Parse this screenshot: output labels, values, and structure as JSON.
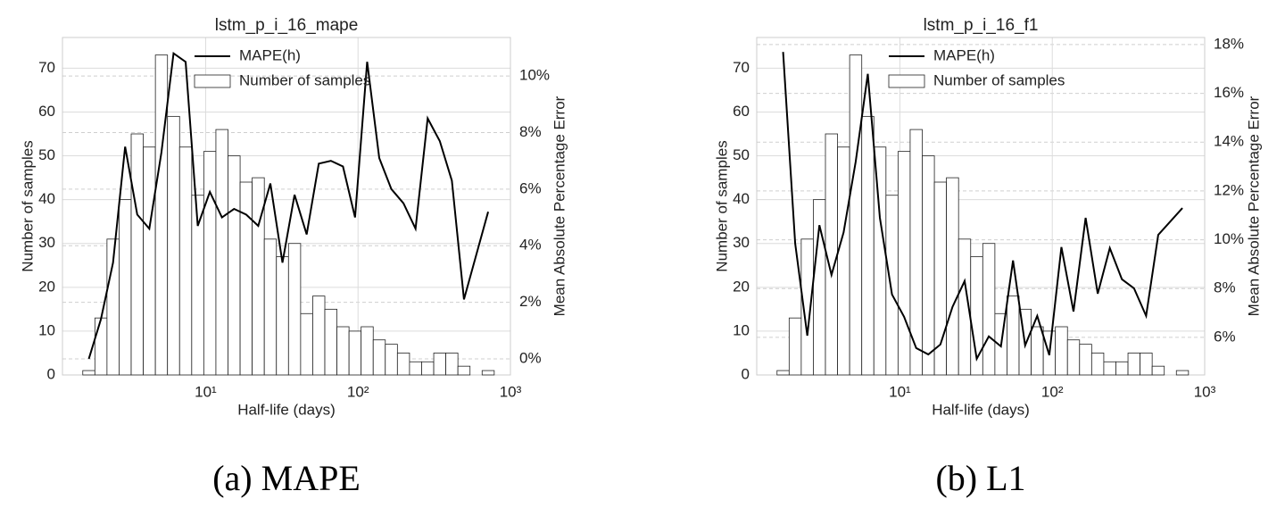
{
  "chart_data": [
    {
      "type": "histogram",
      "title": "lstm_p_i_16_mape",
      "xlabel": "Half-life (days)",
      "ylabel": "Number of samples",
      "y2label": "Mean Absolute Percentage Error",
      "caption": "(a) MAPE",
      "xscale": "log",
      "xlim": [
        1.15,
        1000
      ],
      "xticks": [
        {
          "value": 10,
          "label": "10¹"
        },
        {
          "value": 100,
          "label": "10²"
        },
        {
          "value": 1000,
          "label": "10³"
        }
      ],
      "ylim": [
        0,
        77
      ],
      "yticks": [
        0,
        10,
        20,
        30,
        40,
        50,
        60,
        70
      ],
      "y2lim": [
        -0.57,
        11.36
      ],
      "y2ticks": [
        {
          "value": 0,
          "label": "0%"
        },
        {
          "value": 2,
          "label": "2%"
        },
        {
          "value": 4,
          "label": "4%"
        },
        {
          "value": 6,
          "label": "6%"
        },
        {
          "value": 8,
          "label": "8%"
        },
        {
          "value": 10,
          "label": "10%"
        }
      ],
      "grid": true,
      "bins": [
        1.563,
        1.877,
        2.253,
        2.705,
        3.248,
        3.899,
        4.682,
        5.622,
        6.75,
        8.104,
        9.727,
        11.68,
        14.02,
        16.84,
        20.21,
        24.27,
        29.14,
        34.99,
        42.01,
        50.44,
        60.56,
        72.71,
        87.3,
        104.8,
        125.8,
        151.0,
        181.3,
        217.7,
        261.4,
        313.9,
        376.7,
        452.3,
        543.0,
        652.0,
        782.8
      ],
      "series": [
        {
          "name": "Number of samples",
          "color": "#ffffff",
          "values": [
            1,
            13,
            31,
            40,
            55,
            52,
            73,
            59,
            52,
            41,
            51,
            56,
            50,
            44,
            45,
            31,
            27,
            30,
            14,
            18,
            15,
            11,
            10,
            11,
            8,
            7,
            5,
            3,
            3,
            5,
            5,
            2,
            0,
            1
          ]
        },
        {
          "name": "MAPE(h)",
          "color": "#000000",
          "axis": "y2",
          "x": [
            1.713,
            2.056,
            2.469,
            2.964,
            3.559,
            4.272,
            5.13,
            6.16,
            7.393,
            8.878,
            10.66,
            12.8,
            15.37,
            18.45,
            22.15,
            26.6,
            31.93,
            38.33,
            46.03,
            55.26,
            66.35,
            79.66,
            95.6,
            114.8,
            137.8,
            165.5,
            198.7,
            238.5,
            286.4,
            343.9,
            412.8,
            495.6,
            714.3
          ],
          "values": [
            0.0,
            1.4,
            3.4,
            7.5,
            5.1,
            4.6,
            7.3,
            10.8,
            10.5,
            4.7,
            5.9,
            5.0,
            5.3,
            5.1,
            4.7,
            6.2,
            3.4,
            5.8,
            4.4,
            6.9,
            7.0,
            6.8,
            5.0,
            10.5,
            7.1,
            6.0,
            5.5,
            4.6,
            8.5,
            7.7,
            6.3,
            2.1,
            5.2
          ]
        }
      ]
    },
    {
      "type": "histogram",
      "title": "lstm_p_i_16_f1",
      "xlabel": "Half-life (days)",
      "ylabel": "Number of samples",
      "y2label": "Mean Absolute Percentage Error",
      "caption": "(b) L1",
      "xscale": "log",
      "xlim": [
        1.15,
        1000
      ],
      "xticks": [
        {
          "value": 10,
          "label": "10¹"
        },
        {
          "value": 100,
          "label": "10²"
        },
        {
          "value": 1000,
          "label": "10³"
        }
      ],
      "ylim": [
        0,
        77
      ],
      "yticks": [
        0,
        10,
        20,
        30,
        40,
        50,
        60,
        70
      ],
      "y2lim": [
        4.46,
        18.29
      ],
      "y2ticks": [
        {
          "value": 6,
          "label": "6%"
        },
        {
          "value": 8,
          "label": "8%"
        },
        {
          "value": 10,
          "label": "10%"
        },
        {
          "value": 12,
          "label": "12%"
        },
        {
          "value": 14,
          "label": "14%"
        },
        {
          "value": 16,
          "label": "16%"
        },
        {
          "value": 18,
          "label": "18%"
        }
      ],
      "grid": true,
      "bins": [
        1.563,
        1.877,
        2.253,
        2.705,
        3.248,
        3.899,
        4.682,
        5.622,
        6.75,
        8.104,
        9.727,
        11.68,
        14.02,
        16.84,
        20.21,
        24.27,
        29.14,
        34.99,
        42.01,
        50.44,
        60.56,
        72.71,
        87.3,
        104.8,
        125.8,
        151.0,
        181.3,
        217.7,
        261.4,
        313.9,
        376.7,
        452.3,
        543.0,
        652.0,
        782.8
      ],
      "series": [
        {
          "name": "Number of samples",
          "color": "#ffffff",
          "values": [
            1,
            13,
            31,
            40,
            55,
            52,
            73,
            59,
            52,
            41,
            51,
            56,
            50,
            44,
            45,
            31,
            27,
            30,
            14,
            18,
            15,
            11,
            10,
            11,
            8,
            7,
            5,
            3,
            3,
            5,
            5,
            2,
            0,
            1
          ]
        },
        {
          "name": "MAPE(h)",
          "color": "#000000",
          "axis": "y2",
          "x": [
            1.713,
            2.056,
            2.469,
            2.964,
            3.559,
            4.272,
            5.13,
            6.16,
            7.393,
            8.878,
            10.66,
            12.8,
            15.37,
            18.45,
            22.15,
            26.6,
            31.93,
            38.33,
            46.03,
            55.26,
            66.35,
            79.66,
            95.6,
            114.8,
            137.8,
            165.5,
            198.7,
            238.5,
            286.4,
            343.9,
            412.8,
            495.6,
            714.3
          ],
          "values": [
            17.7,
            9.85,
            6.07,
            10.6,
            8.56,
            10.3,
            13.2,
            16.8,
            10.9,
            7.76,
            6.84,
            5.56,
            5.3,
            5.71,
            7.25,
            8.31,
            5.12,
            6.04,
            5.63,
            9.15,
            5.67,
            6.88,
            5.27,
            9.7,
            7.06,
            10.9,
            7.79,
            9.66,
            8.38,
            8.01,
            6.88,
            10.2,
            11.3
          ]
        }
      ]
    }
  ]
}
